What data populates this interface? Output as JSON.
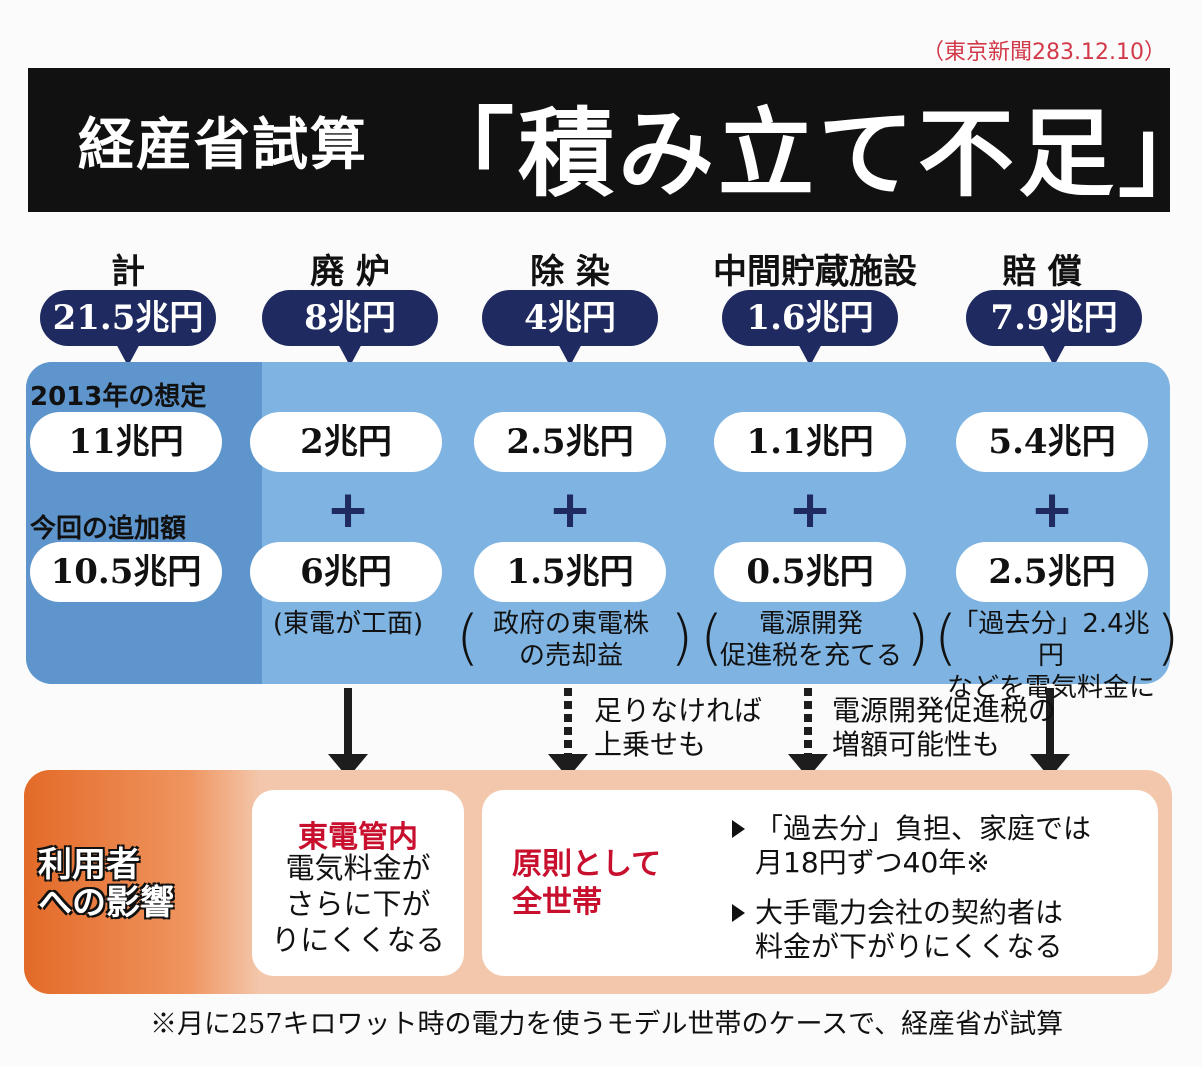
{
  "source": "（東京新聞283.12.10）",
  "title": {
    "prefix": "経産省試算",
    "main": "「積み立て不足」"
  },
  "categories": [
    {
      "name": "計",
      "total": "21.5兆円"
    },
    {
      "name": "廃 炉",
      "total": "8兆円"
    },
    {
      "name": "除 染",
      "total": "4兆円"
    },
    {
      "name": "中間貯蔵施設",
      "total": "1.6兆円"
    },
    {
      "name": "賠 償",
      "total": "7.9兆円"
    }
  ],
  "row_labels": {
    "assumption": "2013年の想定",
    "addition": "今回の追加額"
  },
  "assumption_values": [
    "11兆円",
    "2兆円",
    "2.5兆円",
    "1.1兆円",
    "5.4兆円"
  ],
  "addition_values": [
    "10.5兆円",
    "6兆円",
    "1.5兆円",
    "0.5兆円",
    "2.5兆円"
  ],
  "plus_sign": "+",
  "funding_notes": [
    "東電が工面",
    "政府の東電株\nの売却益",
    "電源開発\n促進税を充てる",
    "「過去分」2.4兆円\nなどを電気料金に"
  ],
  "paren": {
    "open": "(",
    "close": ")"
  },
  "side_notes": [
    "足りなければ\n上乗せも",
    "電源開発促進税の\n増額可能性も"
  ],
  "impact": {
    "label": "利用者\nへの影響",
    "tokyo_title": "東電管内",
    "tokyo_body": "電気料金が\nさらに下が\nりにくくなる",
    "principle": "原則として\n全世帯",
    "bullets": [
      "「過去分」負担、家庭では\n月18円ずつ40年※",
      "大手電力会社の契約者は\n料金が下がりにくくなる"
    ]
  },
  "footnote": "※月に257キロワット時の電力を使うモデル世帯のケースで、経産省が試算",
  "colors": {
    "banner": "#111111",
    "pill": "#1f2a60",
    "panel": "#7fb4e2",
    "impact": "#f3c7ab",
    "accent_red": "#c8102e"
  }
}
